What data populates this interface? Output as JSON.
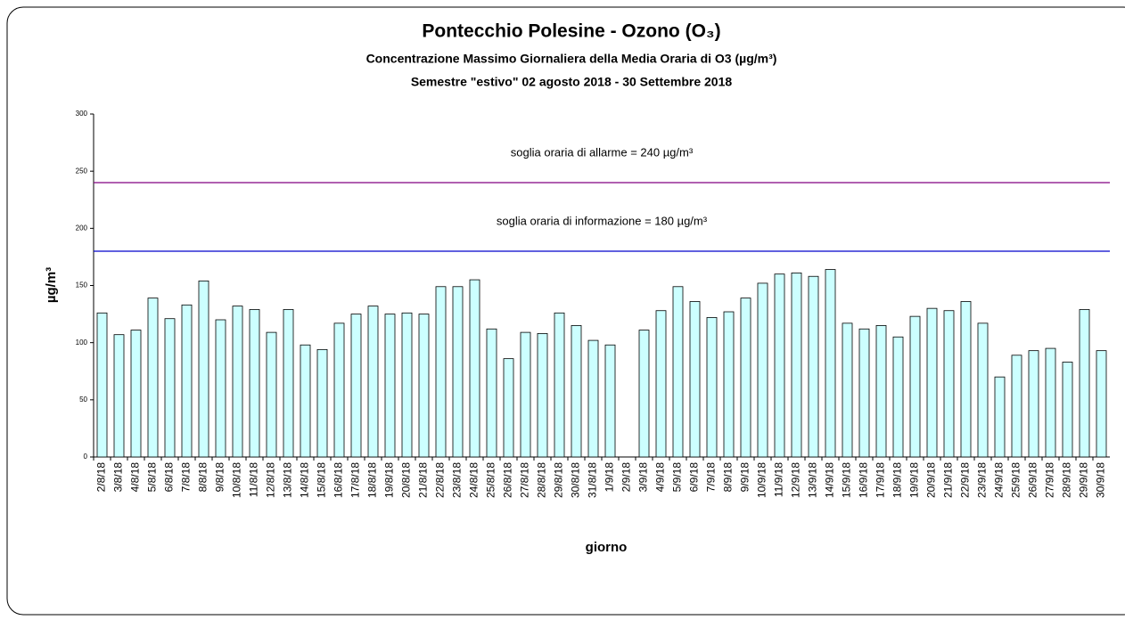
{
  "chart_data": {
    "type": "bar",
    "title": "Pontecchio Polesine - Ozono (O₃)",
    "subtitle": [
      "Concentrazione  Massimo Giornaliera della Media Oraria di O3 (µg/m³)",
      "Semestre \"estivo\" 02 agosto 2018 - 30 Settembre 2018"
    ],
    "x_label": "giorno",
    "y_label": "µg/m³",
    "categories": [
      "2/8/18",
      "3/8/18",
      "4/8/18",
      "5/8/18",
      "6/8/18",
      "7/8/18",
      "8/8/18",
      "9/8/18",
      "10/8/18",
      "11/8/18",
      "12/8/18",
      "13/8/18",
      "14/8/18",
      "15/8/18",
      "16/8/18",
      "17/8/18",
      "18/8/18",
      "19/8/18",
      "20/8/18",
      "21/8/18",
      "22/8/18",
      "23/8/18",
      "24/8/18",
      "25/8/18",
      "26/8/18",
      "27/8/18",
      "28/8/18",
      "29/8/18",
      "30/8/18",
      "31/8/18",
      "1/9/18",
      "2/9/18",
      "3/9/18",
      "4/9/18",
      "5/9/18",
      "6/9/18",
      "7/9/18",
      "8/9/18",
      "9/9/18",
      "10/9/18",
      "11/9/18",
      "12/9/18",
      "13/9/18",
      "14/9/18",
      "15/9/18",
      "16/9/18",
      "17/9/18",
      "18/9/18",
      "19/9/18",
      "20/9/18",
      "21/9/18",
      "22/9/18",
      "23/9/18",
      "24/9/18",
      "25/9/18",
      "26/9/18",
      "27/9/18",
      "28/9/18",
      "29/9/18",
      "30/9/18"
    ],
    "values": [
      126,
      107,
      111,
      139,
      121,
      133,
      154,
      120,
      132,
      129,
      109,
      129,
      98,
      94,
      117,
      125,
      132,
      125,
      126,
      125,
      149,
      149,
      155,
      112,
      86,
      109,
      108,
      126,
      115,
      102,
      98,
      null,
      111,
      128,
      149,
      136,
      122,
      127,
      139,
      152,
      160,
      161,
      158,
      164,
      117,
      112,
      115,
      105,
      123,
      130,
      128,
      136,
      117,
      70,
      89,
      93,
      95,
      83,
      129,
      93
    ],
    "color": "#ccffff",
    "ylim": [
      0,
      300
    ],
    "yticks": [
      0,
      50,
      100,
      150,
      200,
      250,
      300
    ],
    "thresholds": [
      {
        "value": 240,
        "label": "soglia oraria di allarme = 240 µg/m³",
        "color": "#800080"
      },
      {
        "value": 180,
        "label": "soglia oraria di informazione = 180 µg/m³",
        "color": "#0000cc"
      }
    ]
  }
}
